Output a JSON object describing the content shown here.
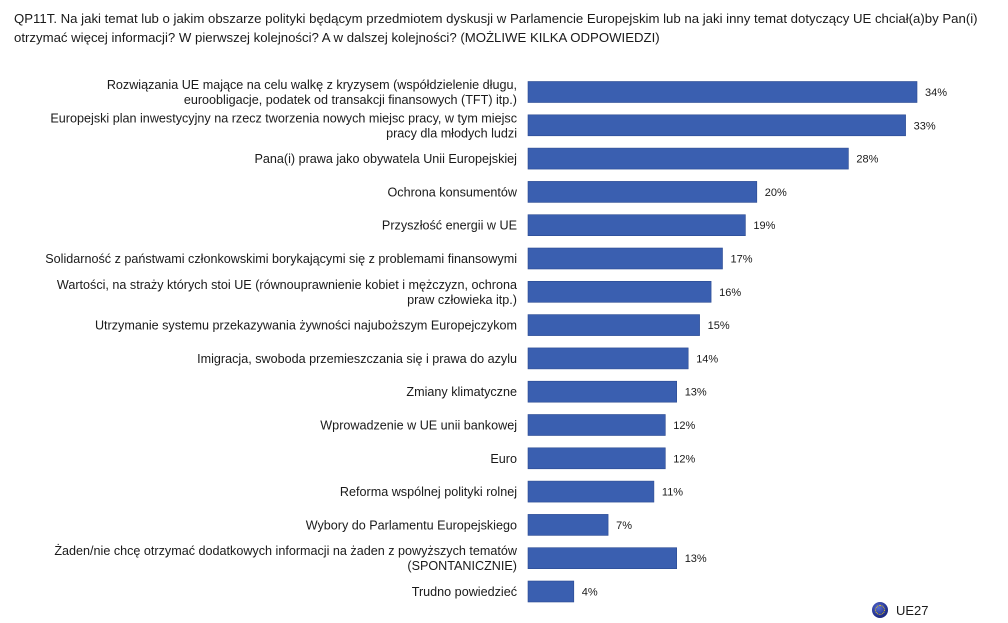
{
  "question": "QP11T. Na jaki temat lub o jakim obszarze polityki będącym przedmiotem dyskusji w Parlamencie Europejskim lub na jaki inny temat dotyczący UE chciał(a)by Pan(i) otrzymać więcej informacji? W pierwszej kolejności? A w dalszej kolejności? (MOŻLIWE KILKA ODPOWIEDZI)",
  "legend": {
    "label": "UE27",
    "icon": "eu-globe-icon"
  },
  "colors": {
    "bar": "#3a5fb0",
    "bar_stroke": "#2b4a91"
  },
  "chart_data": {
    "type": "bar",
    "orientation": "horizontal",
    "value_suffix": "%",
    "xlim": [
      0,
      34
    ],
    "categories": [
      [
        "Rozwiązania UE mające na celu walkę z kryzysem (współdzielenie długu,",
        "euroobligacje, podatek od transakcji finansowych (TFT) itp.)"
      ],
      [
        "Europejski plan inwestycyjny na rzecz tworzenia nowych miejsc pracy, w tym miejsc",
        "pracy dla młodych ludzi"
      ],
      [
        "Pana(i) prawa jako obywatela Unii Europejskiej"
      ],
      [
        "Ochrona konsumentów"
      ],
      [
        "Przyszłość energii w UE"
      ],
      [
        "Solidarność z państwami członkowskimi borykającymi się z problemami finansowymi"
      ],
      [
        "Wartości, na straży których stoi UE (równouprawnienie kobiet i mężczyzn, ochrona",
        "praw człowieka itp.)"
      ],
      [
        "Utrzymanie systemu przekazywania żywności najuboższym Europejczykom"
      ],
      [
        "Imigracja, swoboda przemieszczania się i prawa do azylu"
      ],
      [
        "Zmiany klimatyczne"
      ],
      [
        "Wprowadzenie w UE unii bankowej"
      ],
      [
        "Euro"
      ],
      [
        "Reforma wspólnej polityki rolnej"
      ],
      [
        "Wybory do Parlamentu Europejskiego"
      ],
      [
        "Żaden/nie chcę otrzymać dodatkowych informacji na żaden z powyższych tematów",
        "(SPONTANICZNIE)"
      ],
      [
        "Trudno powiedzieć"
      ]
    ],
    "series": [
      {
        "values": [
          34,
          33,
          28,
          20,
          19,
          17,
          16,
          15,
          14,
          13,
          12,
          12,
          11,
          7,
          13,
          4
        ]
      }
    ]
  }
}
